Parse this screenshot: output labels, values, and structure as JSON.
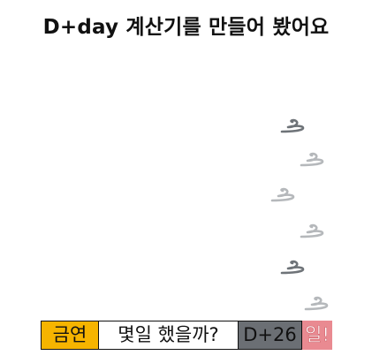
{
  "header": {
    "title": "D+day 계산기를 만들어 봤어요"
  },
  "decorations": {
    "icon_name": "swirl-icon",
    "colors": {
      "dark": "#6e7378",
      "light": "#b5b8bb"
    }
  },
  "result_bar": {
    "name_label": "금연",
    "question_label": "몇일 했을까?",
    "dday_label": "D+26",
    "day_suffix": "일!",
    "colors": {
      "name_bg": "#f6b400",
      "dday_bg": "#6b6f74",
      "day_bg": "#e98a91"
    }
  }
}
